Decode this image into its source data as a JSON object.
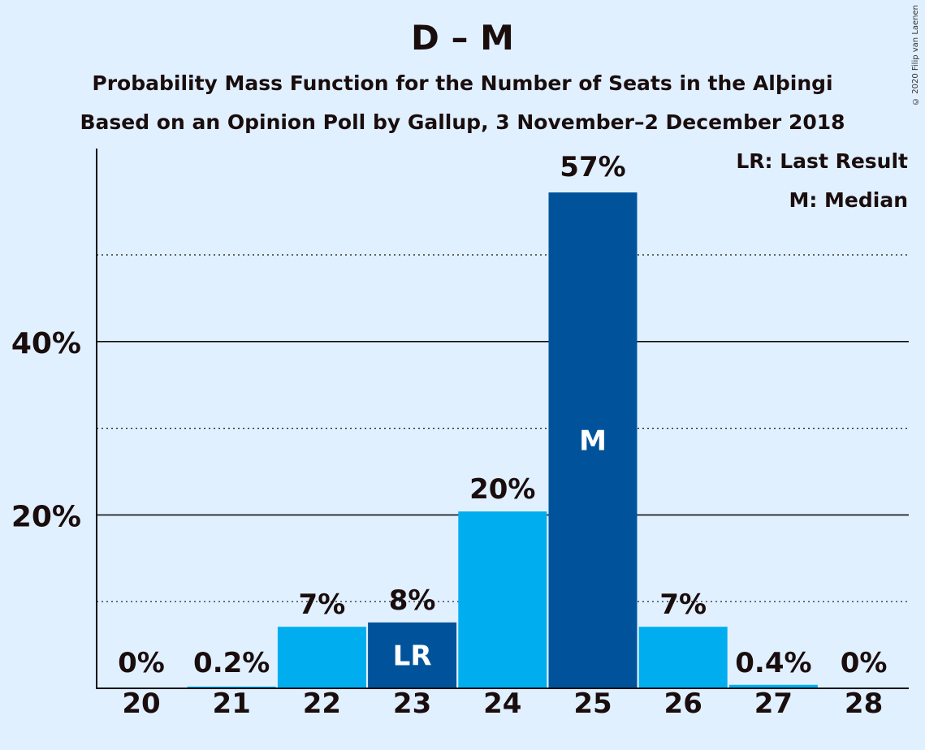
{
  "chart_data": {
    "type": "bar",
    "title": "D – M",
    "subtitle_1": "Probability Mass Function for the Number of Seats in the Alþingi",
    "subtitle_2": "Based on an Opinion Poll by Gallup, 3 November–2 December 2018",
    "categories": [
      "20",
      "21",
      "22",
      "23",
      "24",
      "25",
      "26",
      "27",
      "28"
    ],
    "values": [
      0,
      0.2,
      7.1,
      7.6,
      20.4,
      57.2,
      7.1,
      0.4,
      0
    ],
    "value_labels": [
      "0%",
      "0.2%",
      "7%",
      "8%",
      "20%",
      "57%",
      "7%",
      "0.4%",
      "0%"
    ],
    "bar_markers": [
      "",
      "",
      "",
      "LR",
      "",
      "M",
      "",
      "",
      ""
    ],
    "highlighted": [
      false,
      false,
      false,
      true,
      false,
      true,
      false,
      false,
      false
    ],
    "y_ticks": [
      20,
      40
    ],
    "y_tick_labels": [
      "20%",
      "40%"
    ],
    "minor_gridlines": [
      10,
      30,
      50
    ],
    "ylim": [
      0,
      62
    ],
    "grid": true,
    "legend": [
      "LR: Last Result",
      "M: Median"
    ],
    "legend_placement": "top-right",
    "colors": {
      "background": "#e1f0ff",
      "bar": "#00aeef",
      "bar_highlight": "#00539b",
      "axis": "#111111",
      "text": "#1a0d0d"
    }
  },
  "copyright": "© 2020 Filip van Laenen"
}
